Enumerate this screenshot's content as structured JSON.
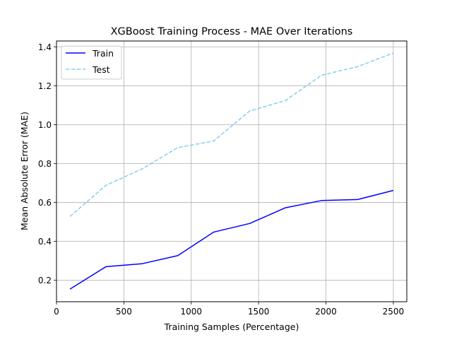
{
  "chart_data": {
    "type": "line",
    "title": "XGBoost Training Process - MAE Over Iterations",
    "xlabel": "Training Samples (Percentage)",
    "ylabel": "Mean Absolute Error (MAE)",
    "xlim": [
      0,
      2600
    ],
    "ylim": [
      0.09,
      1.43
    ],
    "xticks": [
      0,
      500,
      1000,
      1500,
      2000,
      2500
    ],
    "xtick_labels": [
      "0",
      "500",
      "1000",
      "1500",
      "2000",
      "2500"
    ],
    "yticks": [
      0.2,
      0.4,
      0.6,
      0.8,
      1.0,
      1.2,
      1.4
    ],
    "ytick_labels": [
      "0.2",
      "0.4",
      "0.6",
      "0.8",
      "1.0",
      "1.2",
      "1.4"
    ],
    "grid": true,
    "legend_position": "top-left",
    "x": [
      100,
      367,
      633,
      900,
      1167,
      1433,
      1700,
      1967,
      2233,
      2500
    ],
    "series": [
      {
        "name": "Train",
        "color": "#0000ff",
        "style": "solid",
        "values": [
          0.155,
          0.27,
          0.285,
          0.327,
          0.448,
          0.492,
          0.573,
          0.61,
          0.615,
          0.662
        ]
      },
      {
        "name": "Test",
        "color": "#87ceeb",
        "style": "dashed",
        "values": [
          0.528,
          0.688,
          0.772,
          0.882,
          0.916,
          1.07,
          1.124,
          1.254,
          1.298,
          1.368
        ]
      }
    ]
  }
}
